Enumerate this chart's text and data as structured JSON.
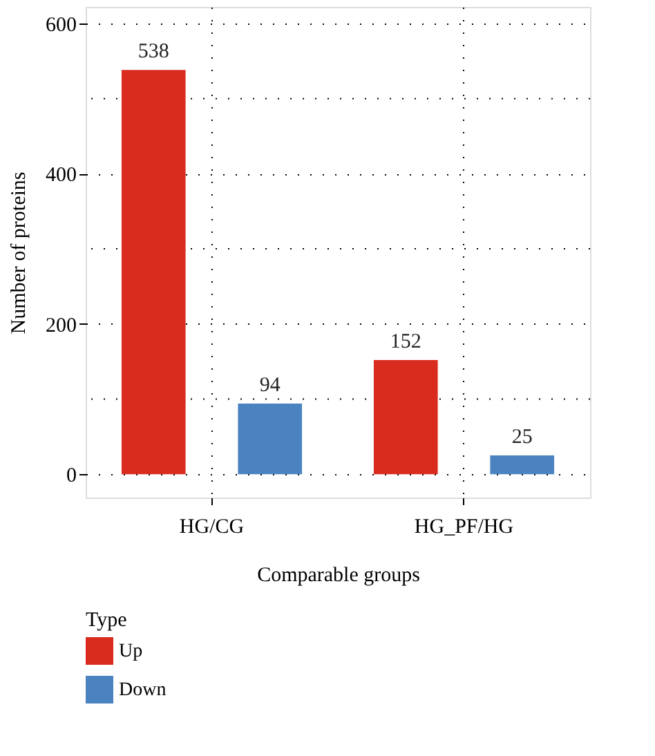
{
  "chart_data": {
    "type": "bar",
    "xlabel": "Comparable groups",
    "ylabel": "Number of proteins",
    "legend_title": "Type",
    "categories": [
      "HG/CG",
      "HG_PF/HG"
    ],
    "series": [
      {
        "name": "Up",
        "color": "#d92b1e",
        "values": [
          538,
          152
        ]
      },
      {
        "name": "Down",
        "color": "#4a83c0",
        "values": [
          94,
          25
        ]
      }
    ],
    "ylim": [
      -31,
      622
    ],
    "yticks": [
      0,
      200,
      400,
      600
    ],
    "grid": true,
    "legend": "bottom",
    "data_labels": true
  }
}
